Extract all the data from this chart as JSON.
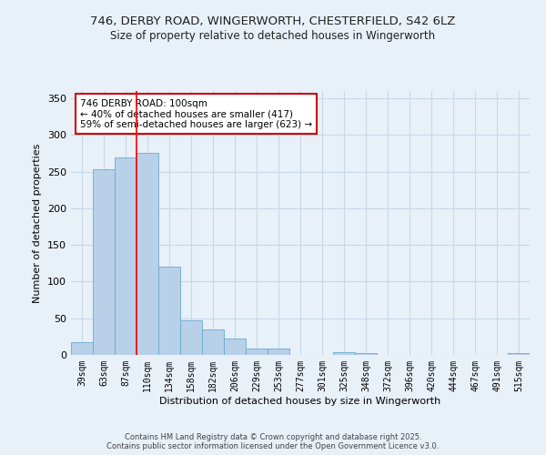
{
  "title_line1": "746, DERBY ROAD, WINGERWORTH, CHESTERFIELD, S42 6LZ",
  "title_line2": "Size of property relative to detached houses in Wingerworth",
  "xlabel": "Distribution of detached houses by size in Wingerworth",
  "ylabel": "Number of detached properties",
  "categories": [
    "39sqm",
    "63sqm",
    "87sqm",
    "110sqm",
    "134sqm",
    "158sqm",
    "182sqm",
    "206sqm",
    "229sqm",
    "253sqm",
    "277sqm",
    "301sqm",
    "325sqm",
    "348sqm",
    "372sqm",
    "396sqm",
    "420sqm",
    "444sqm",
    "467sqm",
    "491sqm",
    "515sqm"
  ],
  "values": [
    18,
    253,
    270,
    275,
    121,
    47,
    35,
    22,
    9,
    9,
    0,
    0,
    4,
    2,
    0,
    0,
    0,
    0,
    0,
    0,
    2
  ],
  "bar_color": "#b8d0e8",
  "bar_edge_color": "#6aaad4",
  "grid_color": "#c8d8e8",
  "background_color": "#e8f0f8",
  "red_line_x": 2.5,
  "annotation_text": "746 DERBY ROAD: 100sqm\n← 40% of detached houses are smaller (417)\n59% of semi-detached houses are larger (623) →",
  "annotation_box_facecolor": "#ffffff",
  "annotation_box_edgecolor": "#cc0000",
  "ylim": [
    0,
    360
  ],
  "yticks": [
    0,
    50,
    100,
    150,
    200,
    250,
    300,
    350
  ],
  "footer_line1": "Contains HM Land Registry data © Crown copyright and database right 2025.",
  "footer_line2": "Contains public sector information licensed under the Open Government Licence v3.0."
}
